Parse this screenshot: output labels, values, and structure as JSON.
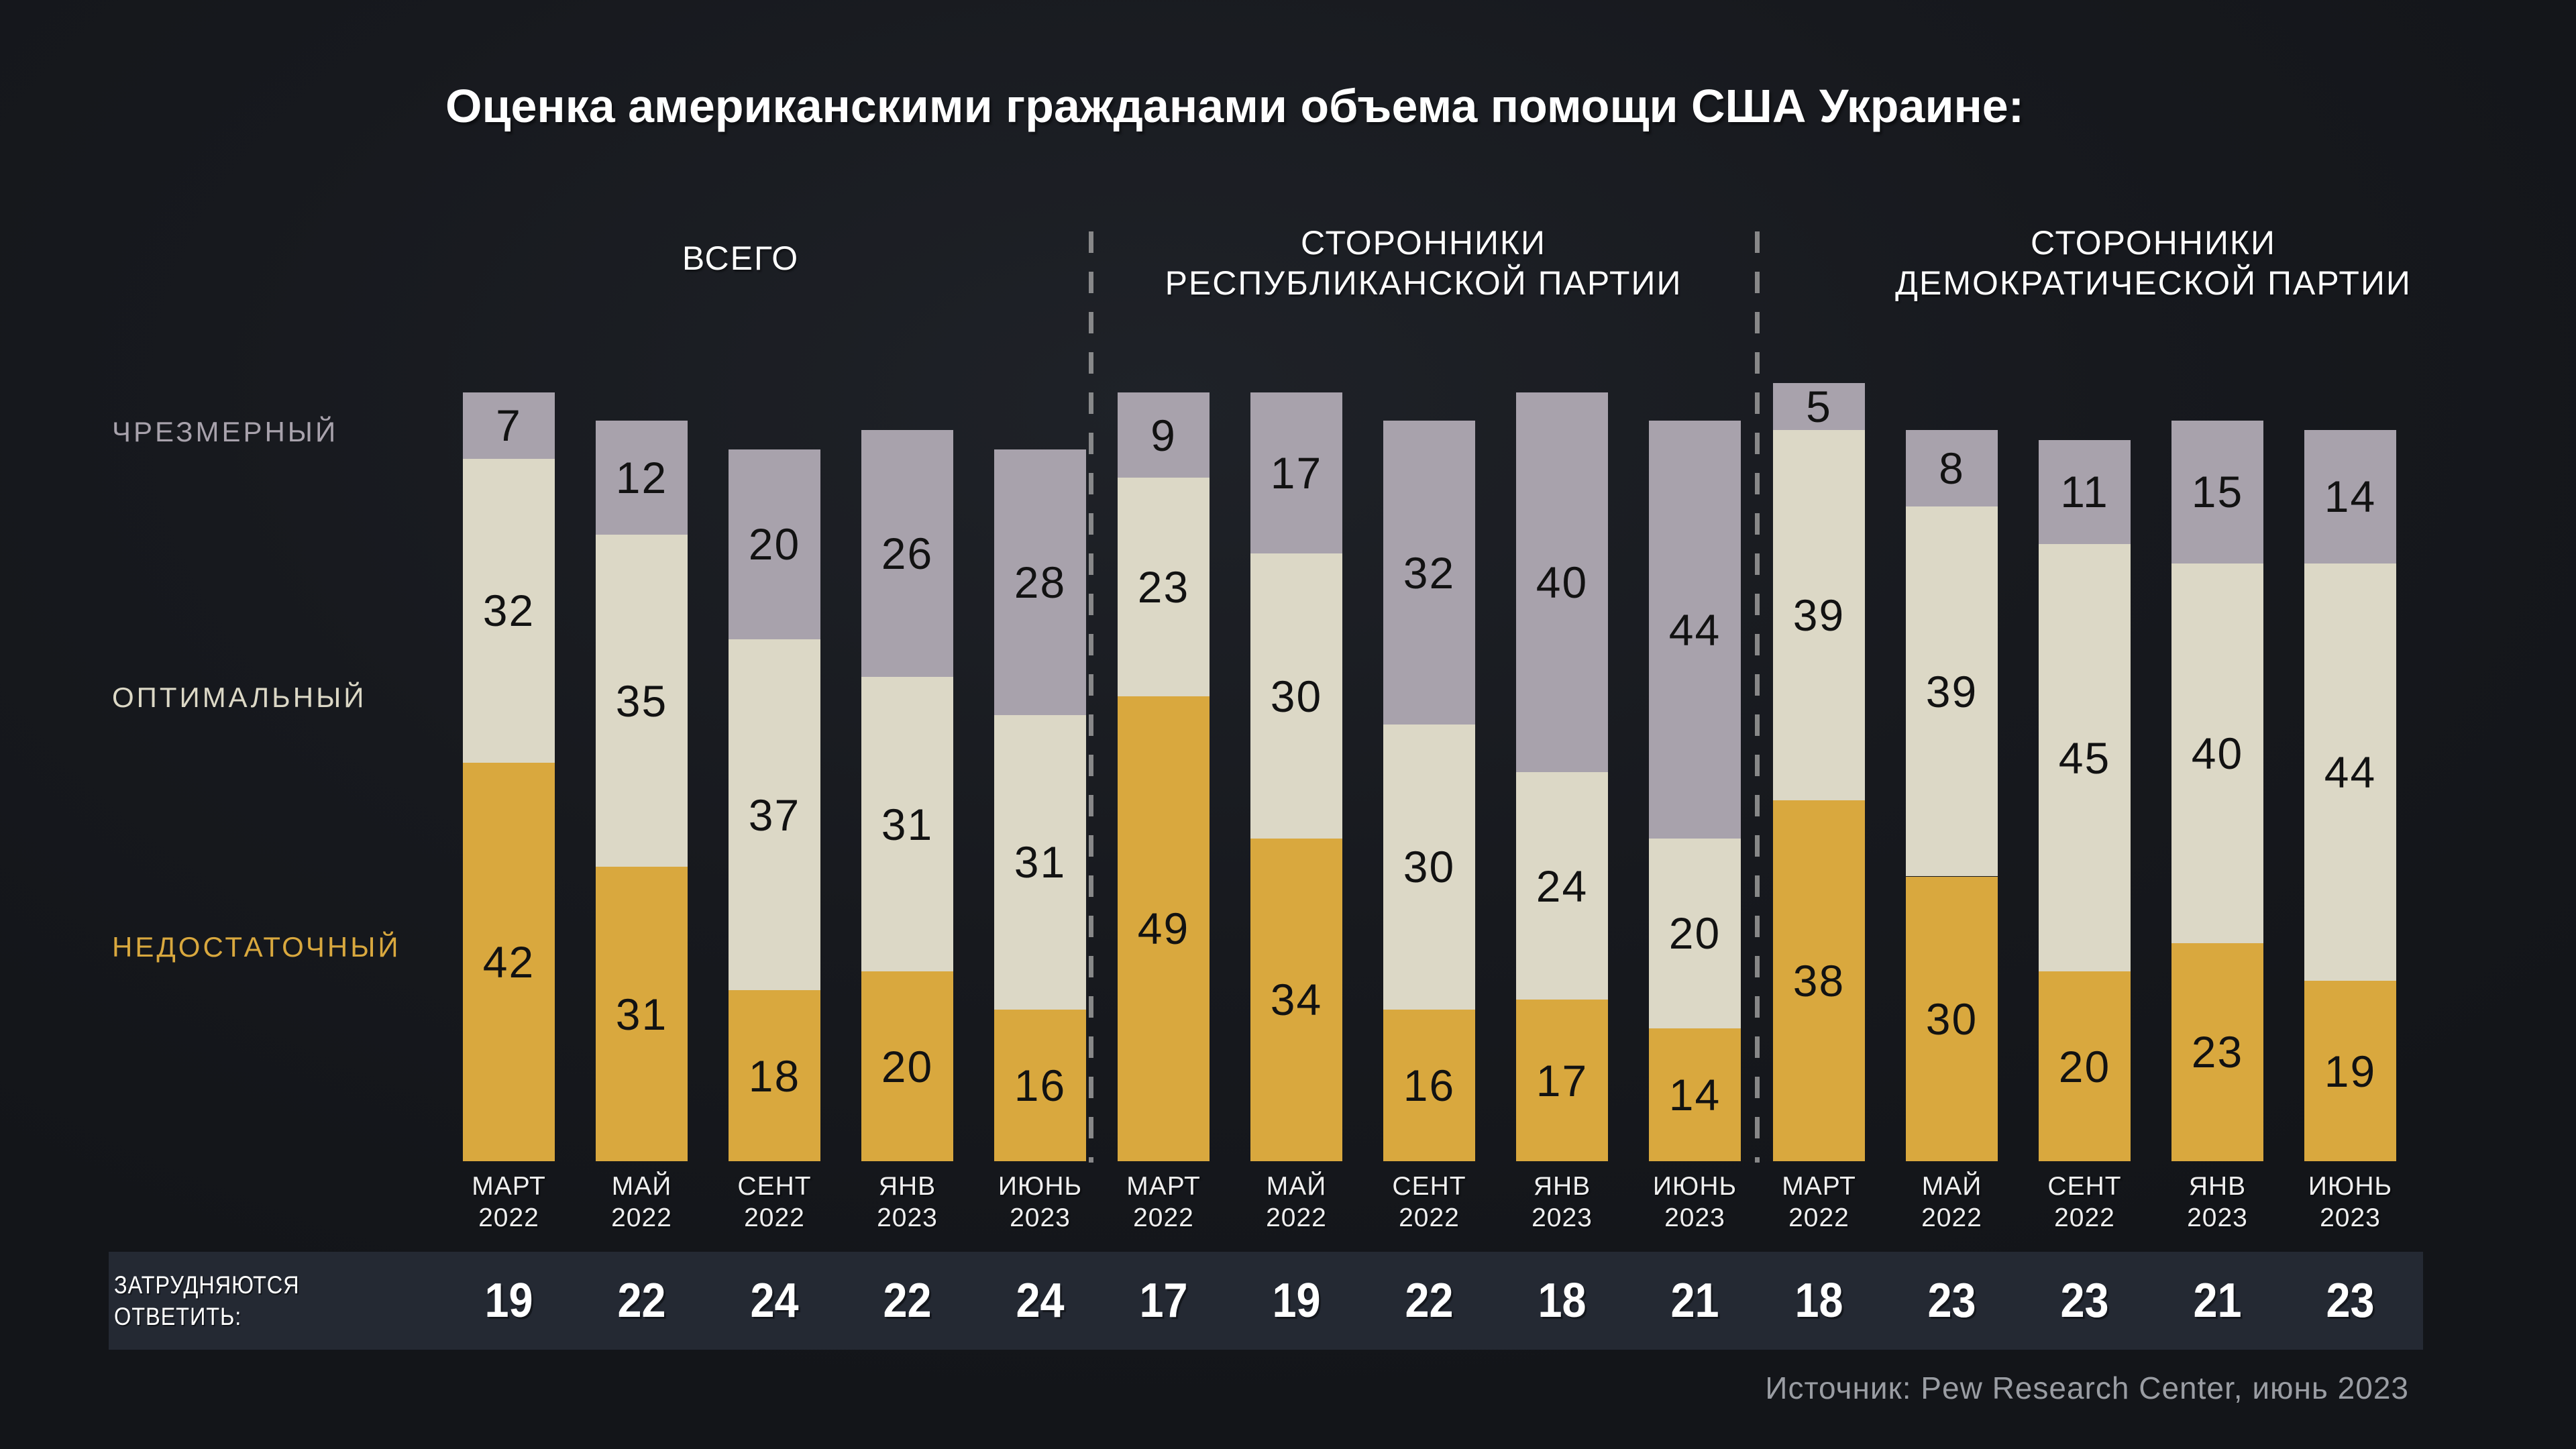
{
  "title": "Оценка американскими гражданами объема помощи США Украине:",
  "source": "Источник: Pew Research Center, июнь 2023",
  "no_answer_label": {
    "line1": "ЗАТРУДНЯЮТСЯ",
    "line2": "ОТВЕТИТЬ:"
  },
  "categories_legend": {
    "excessive": "ЧРЕЗМЕРНЫЙ",
    "optimal": "ОПТИМАЛЬНЫЙ",
    "insufficient": "НЕДОСТАТОЧНЫЙ"
  },
  "colors": {
    "excessive": "#a8a2ac",
    "optimal": "#dcd8c6",
    "insufficient": "#d9a83e",
    "band_bg": "#242933",
    "background": "#17191e",
    "value_text": "#121212",
    "white": "#ffffff",
    "muted": "#9a9da3",
    "dash": "#9b9b9b"
  },
  "chart_data": {
    "type": "bar",
    "stacked": true,
    "units": "percent",
    "stack_order_bottom_to_top": [
      "insufficient",
      "optimal",
      "excessive"
    ],
    "x_categories": [
      "МАРТ 2022",
      "МАЙ 2022",
      "СЕНТ 2022",
      "ЯНВ 2023",
      "ИЮНЬ 2023"
    ],
    "ylim": [
      0,
      100
    ],
    "legend_position": "left",
    "grid": false,
    "groups": [
      {
        "label_lines": [
          "ВСЕГО"
        ],
        "columns": [
          {
            "month": "МАРТ",
            "year": "2022",
            "excessive": 7,
            "optimal": 32,
            "insufficient": 42,
            "no_answer": 19
          },
          {
            "month": "МАЙ",
            "year": "2022",
            "excessive": 12,
            "optimal": 35,
            "insufficient": 31,
            "no_answer": 22
          },
          {
            "month": "СЕНТ",
            "year": "2022",
            "excessive": 20,
            "optimal": 37,
            "insufficient": 18,
            "no_answer": 24
          },
          {
            "month": "ЯНВ",
            "year": "2023",
            "excessive": 26,
            "optimal": 31,
            "insufficient": 20,
            "no_answer": 22
          },
          {
            "month": "ИЮНЬ",
            "year": "2023",
            "excessive": 28,
            "optimal": 31,
            "insufficient": 16,
            "no_answer": 24
          }
        ]
      },
      {
        "label_lines": [
          "СТОРОННИКИ",
          "РЕСПУБЛИКАНСКОЙ ПАРТИИ"
        ],
        "columns": [
          {
            "month": "МАРТ",
            "year": "2022",
            "excessive": 9,
            "optimal": 23,
            "insufficient": 49,
            "no_answer": 17
          },
          {
            "month": "МАЙ",
            "year": "2022",
            "excessive": 17,
            "optimal": 30,
            "insufficient": 34,
            "no_answer": 19
          },
          {
            "month": "СЕНТ",
            "year": "2022",
            "excessive": 32,
            "optimal": 30,
            "insufficient": 16,
            "no_answer": 22
          },
          {
            "month": "ЯНВ",
            "year": "2023",
            "excessive": 40,
            "optimal": 24,
            "insufficient": 17,
            "no_answer": 18
          },
          {
            "month": "ИЮНЬ",
            "year": "2023",
            "excessive": 44,
            "optimal": 20,
            "insufficient": 14,
            "no_answer": 21
          }
        ]
      },
      {
        "label_lines": [
          "СТОРОННИКИ",
          "ДЕМОКРАТИЧЕСКОЙ ПАРТИИ"
        ],
        "columns": [
          {
            "month": "МАРТ",
            "year": "2022",
            "excessive": 5,
            "optimal": 39,
            "insufficient": 38,
            "no_answer": 18
          },
          {
            "month": "МАЙ",
            "year": "2022",
            "excessive": 8,
            "optimal": 39,
            "insufficient": 30,
            "no_answer": 23
          },
          {
            "month": "СЕНТ",
            "year": "2022",
            "excessive": 11,
            "optimal": 45,
            "insufficient": 20,
            "no_answer": 23
          },
          {
            "month": "ЯНВ",
            "year": "2023",
            "excessive": 15,
            "optimal": 40,
            "insufficient": 23,
            "no_answer": 21
          },
          {
            "month": "ИЮНЬ",
            "year": "2023",
            "excessive": 14,
            "optimal": 44,
            "insufficient": 19,
            "no_answer": 23
          }
        ]
      }
    ]
  }
}
